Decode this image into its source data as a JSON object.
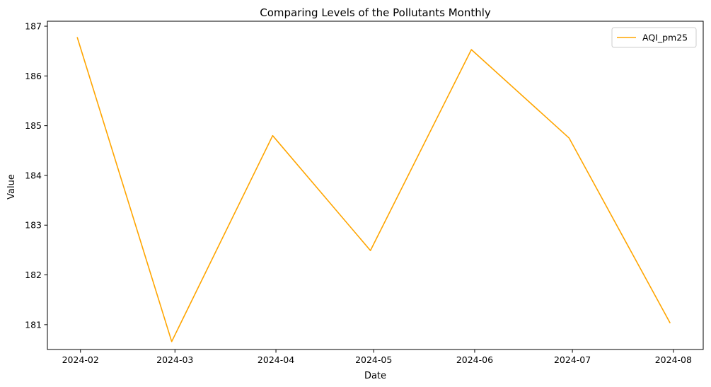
{
  "chart_data": {
    "type": "line",
    "title": "Comparing Levels of the Pollutants Monthly",
    "xlabel": "Date",
    "ylabel": "Value",
    "x_ticks": [
      "2024-02",
      "2024-03",
      "2024-04",
      "2024-05",
      "2024-06",
      "2024-07",
      "2024-08"
    ],
    "y_ticks": [
      181,
      182,
      183,
      184,
      185,
      186,
      187
    ],
    "ylim": [
      180.5,
      187.1
    ],
    "x": [
      "2024-01-31",
      "2024-02-29",
      "2024-03-31",
      "2024-04-30",
      "2024-05-31",
      "2024-06-30",
      "2024-07-31"
    ],
    "series": [
      {
        "name": "AQI_pm25",
        "color": "#FFA500",
        "values": [
          186.78,
          180.66,
          184.8,
          182.49,
          186.53,
          184.75,
          181.03
        ]
      }
    ],
    "legend_position": "top-right",
    "grid": false
  }
}
